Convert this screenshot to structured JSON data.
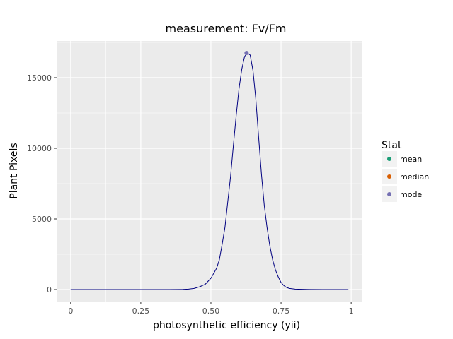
{
  "chart_data": {
    "type": "line",
    "title": "measurement: Fv/Fm",
    "xlabel": "photosynthetic efficiency (yii)",
    "ylabel": "Plant Pixels",
    "xlim": [
      -0.05,
      1.04
    ],
    "ylim": [
      -850,
      17600
    ],
    "x_ticks": [
      0,
      0.25,
      0.5,
      0.75,
      1
    ],
    "x_tick_labels": [
      "0",
      "0.25",
      "0.50",
      "0.75",
      "1"
    ],
    "y_ticks": [
      0,
      5000,
      10000,
      15000
    ],
    "y_tick_labels": [
      "0",
      "5000",
      "10000",
      "15000"
    ],
    "grid": true,
    "background": "#ebebeb",
    "line_color": "#000080",
    "series": [
      {
        "x": [
          0,
          0.1,
          0.2,
          0.3,
          0.35,
          0.4,
          0.42,
          0.44,
          0.46,
          0.48,
          0.5,
          0.52,
          0.53,
          0.54,
          0.55,
          0.56,
          0.57,
          0.58,
          0.59,
          0.6,
          0.61,
          0.62,
          0.63,
          0.64,
          0.65,
          0.66,
          0.67,
          0.68,
          0.69,
          0.7,
          0.71,
          0.72,
          0.73,
          0.74,
          0.75,
          0.76,
          0.77,
          0.78,
          0.8,
          0.85,
          0.9,
          0.95,
          0.99
        ],
        "y": [
          0,
          0,
          0,
          0,
          0,
          10,
          30,
          80,
          200,
          380,
          800,
          1500,
          2100,
          3200,
          4400,
          6200,
          8000,
          10200,
          12300,
          14200,
          15600,
          16500,
          16750,
          16600,
          15500,
          13500,
          10800,
          8200,
          6000,
          4400,
          3100,
          2100,
          1400,
          900,
          500,
          280,
          150,
          80,
          30,
          5,
          0,
          0,
          0
        ]
      }
    ],
    "points": [
      {
        "stat": "mode",
        "x": 0.627,
        "y": 16750
      }
    ],
    "legend": {
      "title": "Stat",
      "position": "right",
      "items": [
        {
          "label": "mean",
          "color": "#1b9e77"
        },
        {
          "label": "median",
          "color": "#d95f02"
        },
        {
          "label": "mode",
          "color": "#7570b3"
        }
      ]
    }
  }
}
